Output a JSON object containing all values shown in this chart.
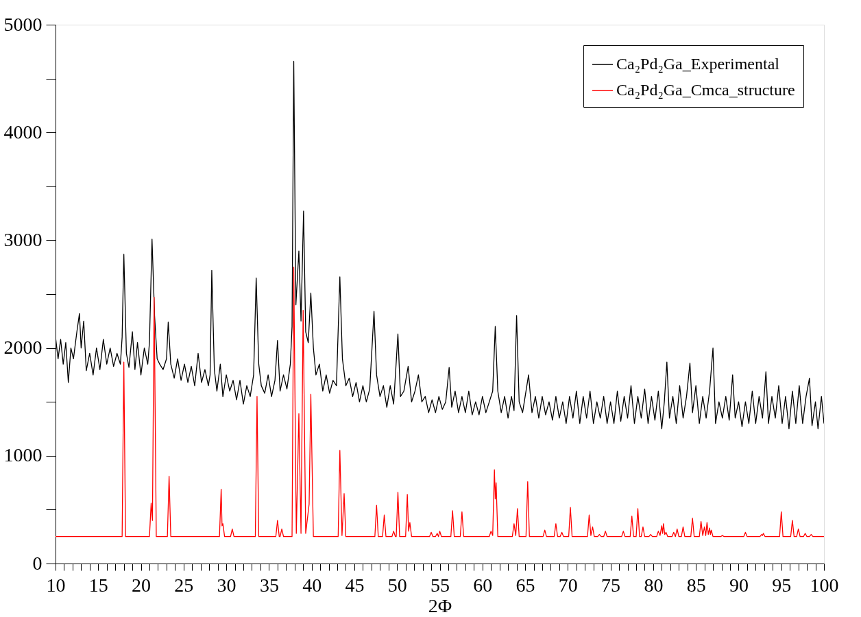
{
  "chart_data": {
    "type": "line",
    "xlabel": "2Φ",
    "xlim": [
      10,
      100
    ],
    "ylim": [
      0,
      5000
    ],
    "xticks": [
      10,
      {
        "value": 11,
        "label": null
      },
      {
        "value": 12,
        "label": null
      },
      {
        "value": 13,
        "label": null
      },
      {
        "value": 14,
        "label": null
      },
      15,
      {
        "value": 16,
        "label": null
      },
      {
        "value": 17,
        "label": null
      },
      {
        "value": 18,
        "label": null
      },
      {
        "value": 19,
        "label": null
      },
      20,
      {
        "value": 21,
        "label": null
      },
      {
        "value": 22,
        "label": null
      },
      {
        "value": 23,
        "label": null
      },
      {
        "value": 24,
        "label": null
      },
      25,
      {
        "value": 26,
        "label": null
      },
      {
        "value": 27,
        "label": null
      },
      {
        "value": 28,
        "label": null
      },
      {
        "value": 29,
        "label": null
      },
      30,
      {
        "value": 31,
        "label": null
      },
      {
        "value": 32,
        "label": null
      },
      {
        "value": 33,
        "label": null
      },
      {
        "value": 34,
        "label": null
      },
      35,
      {
        "value": 36,
        "label": null
      },
      {
        "value": 37,
        "label": null
      },
      {
        "value": 38,
        "label": null
      },
      {
        "value": 39,
        "label": null
      },
      40,
      {
        "value": 41,
        "label": null
      },
      {
        "value": 42,
        "label": null
      },
      {
        "value": 43,
        "label": null
      },
      {
        "value": 44,
        "label": null
      },
      45,
      {
        "value": 46,
        "label": null
      },
      {
        "value": 47,
        "label": null
      },
      {
        "value": 48,
        "label": null
      },
      {
        "value": 49,
        "label": null
      },
      50,
      {
        "value": 51,
        "label": null
      },
      {
        "value": 52,
        "label": null
      },
      {
        "value": 53,
        "label": null
      },
      {
        "value": 54,
        "label": null
      },
      55,
      {
        "value": 56,
        "label": null
      },
      {
        "value": 57,
        "label": null
      },
      {
        "value": 58,
        "label": null
      },
      {
        "value": 59,
        "label": null
      },
      60,
      {
        "value": 61,
        "label": null
      },
      {
        "value": 62,
        "label": null
      },
      {
        "value": 63,
        "label": null
      },
      {
        "value": 64,
        "label": null
      },
      65,
      {
        "value": 66,
        "label": null
      },
      {
        "value": 67,
        "label": null
      },
      {
        "value": 68,
        "label": null
      },
      {
        "value": 69,
        "label": null
      },
      70,
      {
        "value": 71,
        "label": null
      },
      {
        "value": 72,
        "label": null
      },
      {
        "value": 73,
        "label": null
      },
      {
        "value": 74,
        "label": null
      },
      75,
      {
        "value": 76,
        "label": null
      },
      {
        "value": 77,
        "label": null
      },
      {
        "value": 78,
        "label": null
      },
      {
        "value": 79,
        "label": null
      },
      80,
      {
        "value": 81,
        "label": null
      },
      {
        "value": 82,
        "label": null
      },
      {
        "value": 83,
        "label": null
      },
      {
        "value": 84,
        "label": null
      },
      85,
      {
        "value": 86,
        "label": null
      },
      {
        "value": 87,
        "label": null
      },
      {
        "value": 88,
        "label": null
      },
      {
        "value": 89,
        "label": null
      },
      90,
      {
        "value": 91,
        "label": null
      },
      {
        "value": 92,
        "label": null
      },
      {
        "value": 93,
        "label": null
      },
      {
        "value": 94,
        "label": null
      },
      95,
      {
        "value": 96,
        "label": null
      },
      {
        "value": 97,
        "label": null
      },
      {
        "value": 98,
        "label": null
      },
      {
        "value": 99,
        "label": null
      },
      100
    ],
    "yticks": [
      0,
      {
        "value": 500,
        "label": null
      },
      1000,
      {
        "value": 1500,
        "label": null
      },
      2000,
      {
        "value": 2500,
        "label": null
      },
      3000,
      {
        "value": 3500,
        "label": null
      },
      4000,
      {
        "value": 4500,
        "label": null
      },
      5000
    ],
    "grid": false,
    "legend": "top right",
    "marker": "none",
    "line_style": "solid",
    "series": [
      {
        "name": "Ca₂Pd₂Ga_Experimental",
        "color": "#000000",
        "x": [
          10,
          10.3,
          10.6,
          10.9,
          11.2,
          11.5,
          11.8,
          12.1,
          12.5,
          12.8,
          13.0,
          13.3,
          13.6,
          14.0,
          14.4,
          14.8,
          15.2,
          15.6,
          16.0,
          16.4,
          16.8,
          17.2,
          17.6,
          17.8,
          18.0,
          18.3,
          18.6,
          19.0,
          19.3,
          19.6,
          20.0,
          20.4,
          20.8,
          21.0,
          21.3,
          21.6,
          21.9,
          22.2,
          22.6,
          23.0,
          23.2,
          23.5,
          23.9,
          24.3,
          24.7,
          25.1,
          25.5,
          25.9,
          26.3,
          26.7,
          27.1,
          27.5,
          27.9,
          28.1,
          28.3,
          28.6,
          28.9,
          29.3,
          29.6,
          30.0,
          30.4,
          30.8,
          31.2,
          31.6,
          32.0,
          32.4,
          32.8,
          33.2,
          33.5,
          33.8,
          34.1,
          34.5,
          34.9,
          35.3,
          35.7,
          36.0,
          36.3,
          36.7,
          37.1,
          37.5,
          37.7,
          37.9,
          38.15,
          38.5,
          38.75,
          39.05,
          39.3,
          39.6,
          39.9,
          40.2,
          40.5,
          40.9,
          41.3,
          41.7,
          42.1,
          42.5,
          42.9,
          43.3,
          43.6,
          44.0,
          44.4,
          44.8,
          45.2,
          45.6,
          46.0,
          46.4,
          46.8,
          47.3,
          47.6,
          48.0,
          48.4,
          48.8,
          49.2,
          49.6,
          50.1,
          50.4,
          50.8,
          51.3,
          51.7,
          52.1,
          52.5,
          52.9,
          53.3,
          53.7,
          54.1,
          54.5,
          54.9,
          55.3,
          55.7,
          56.1,
          56.4,
          56.8,
          57.2,
          57.6,
          58.0,
          58.4,
          58.8,
          59.2,
          59.6,
          60.0,
          60.4,
          60.8,
          61.2,
          61.5,
          61.8,
          62.2,
          62.6,
          63.0,
          63.4,
          63.7,
          64.0,
          64.3,
          64.7,
          65.0,
          65.4,
          65.8,
          66.2,
          66.6,
          67.0,
          67.4,
          67.8,
          68.2,
          68.6,
          69.0,
          69.4,
          69.8,
          70.2,
          70.6,
          71.0,
          71.4,
          71.8,
          72.2,
          72.6,
          73.0,
          73.4,
          73.8,
          74.2,
          74.6,
          75.0,
          75.4,
          75.8,
          76.2,
          76.6,
          77.0,
          77.4,
          77.8,
          78.2,
          78.6,
          79.0,
          79.4,
          79.8,
          80.2,
          80.6,
          81.0,
          81.3,
          81.6,
          81.9,
          82.3,
          82.7,
          83.1,
          83.5,
          83.9,
          84.3,
          84.6,
          85.0,
          85.4,
          85.8,
          86.2,
          86.6,
          87.0,
          87.3,
          87.7,
          88.1,
          88.5,
          88.9,
          89.3,
          89.6,
          90.0,
          90.4,
          90.8,
          91.2,
          91.6,
          92.0,
          92.4,
          92.8,
          93.2,
          93.5,
          93.9,
          94.3,
          94.7,
          95.1,
          95.5,
          95.9,
          96.3,
          96.7,
          97.1,
          97.5,
          97.9,
          98.3,
          98.6,
          99.0,
          99.3,
          99.7,
          100
        ],
        "values": [
          2100,
          1900,
          2080,
          1850,
          2050,
          1680,
          2000,
          1900,
          2150,
          2320,
          2000,
          2250,
          1790,
          1950,
          1750,
          2000,
          1800,
          2080,
          1850,
          2000,
          1830,
          1950,
          1850,
          2100,
          2870,
          1950,
          1820,
          2150,
          1800,
          2050,
          1750,
          2000,
          1850,
          2050,
          3010,
          2300,
          1900,
          1850,
          1800,
          1900,
          2240,
          1850,
          1720,
          1900,
          1700,
          1850,
          1680,
          1830,
          1650,
          1950,
          1680,
          1800,
          1650,
          1750,
          2720,
          1800,
          1600,
          1850,
          1550,
          1750,
          1600,
          1700,
          1520,
          1700,
          1480,
          1650,
          1550,
          1750,
          2650,
          1850,
          1650,
          1580,
          1750,
          1550,
          1700,
          2070,
          1600,
          1750,
          1620,
          1850,
          2200,
          4660,
          2400,
          2900,
          2250,
          3270,
          2150,
          2050,
          2510,
          2000,
          1750,
          1850,
          1600,
          1750,
          1580,
          1700,
          1650,
          2660,
          1900,
          1650,
          1720,
          1550,
          1680,
          1500,
          1650,
          1500,
          1620,
          2340,
          1750,
          1550,
          1650,
          1450,
          1650,
          1480,
          2130,
          1550,
          1600,
          1830,
          1500,
          1600,
          1750,
          1500,
          1550,
          1400,
          1520,
          1400,
          1550,
          1430,
          1500,
          1820,
          1450,
          1600,
          1400,
          1550,
          1400,
          1600,
          1380,
          1500,
          1380,
          1550,
          1400,
          1500,
          1600,
          2200,
          1600,
          1400,
          1550,
          1350,
          1550,
          1420,
          2300,
          1500,
          1400,
          1550,
          1750,
          1400,
          1550,
          1350,
          1550,
          1380,
          1500,
          1330,
          1550,
          1350,
          1500,
          1300,
          1550,
          1350,
          1600,
          1300,
          1550,
          1350,
          1600,
          1300,
          1500,
          1350,
          1550,
          1300,
          1500,
          1300,
          1600,
          1320,
          1550,
          1350,
          1650,
          1300,
          1550,
          1350,
          1620,
          1300,
          1550,
          1330,
          1600,
          1250,
          1500,
          1870,
          1350,
          1550,
          1300,
          1650,
          1350,
          1550,
          1860,
          1400,
          1650,
          1300,
          1550,
          1350,
          1600,
          2000,
          1300,
          1500,
          1350,
          1550,
          1330,
          1750,
          1350,
          1500,
          1270,
          1500,
          1300,
          1600,
          1300,
          1550,
          1350,
          1780,
          1300,
          1550,
          1350,
          1650,
          1300,
          1550,
          1250,
          1600,
          1300,
          1650,
          1300,
          1550,
          1720,
          1280,
          1500,
          1250,
          1550,
          1300
        ]
      },
      {
        "name": "Ca₂Pd₂Ga_Cmca_structure",
        "color": "#ff0000",
        "x": [
          10,
          17.8,
          18.0,
          18.2,
          21.0,
          21.2,
          21.35,
          21.55,
          21.8,
          23.1,
          23.3,
          23.5,
          29.2,
          29.4,
          29.5,
          29.6,
          29.8,
          30.5,
          30.7,
          30.9,
          33.4,
          33.6,
          33.8,
          35.8,
          36.0,
          36.2,
          36.3,
          36.5,
          36.7,
          37.7,
          37.9,
          38.2,
          38.5,
          38.75,
          39.0,
          39.3,
          39.7,
          39.9,
          40.2,
          43.1,
          43.3,
          43.55,
          43.8,
          44.0,
          47.4,
          47.6,
          47.8,
          48.3,
          48.5,
          48.7,
          49.4,
          49.6,
          49.8,
          49.9,
          50.1,
          50.3,
          51.0,
          51.2,
          51.35,
          51.5,
          51.7,
          53.8,
          54.0,
          54.2,
          54.5,
          54.7,
          54.85,
          55.0,
          55.2,
          56.3,
          56.5,
          56.7,
          57.4,
          57.6,
          57.8,
          60.8,
          61.0,
          61.2,
          61.4,
          61.5,
          61.6,
          61.8,
          63.5,
          63.7,
          63.9,
          64.1,
          64.3,
          65.1,
          65.3,
          65.5,
          67.1,
          67.3,
          67.5,
          68.4,
          68.6,
          68.8,
          69.1,
          69.3,
          69.5,
          70.1,
          70.3,
          70.5,
          72.3,
          72.5,
          72.7,
          72.9,
          73.1,
          73.5,
          73.7,
          73.9,
          74.2,
          74.4,
          74.6,
          76.3,
          76.5,
          76.7,
          77.3,
          77.5,
          77.7,
          78.0,
          78.2,
          78.4,
          78.6,
          78.8,
          79.0,
          79.5,
          79.7,
          79.9,
          80.4,
          80.6,
          80.8,
          81.0,
          81.1,
          81.2,
          81.35,
          81.5,
          81.7,
          82.2,
          82.4,
          82.6,
          82.8,
          83.0,
          83.3,
          83.5,
          83.7,
          84.4,
          84.6,
          84.8,
          85.4,
          85.6,
          85.8,
          86.0,
          86.15,
          86.3,
          86.45,
          86.6,
          86.7,
          86.8,
          87.0,
          87.9,
          88.1,
          88.3,
          90.6,
          90.8,
          91.0,
          92.5,
          92.7,
          92.8,
          92.9,
          93.1,
          94.8,
          95.0,
          95.2,
          96.1,
          96.3,
          96.5,
          96.8,
          97.0,
          97.2,
          97.6,
          97.8,
          98.0,
          98.3,
          98.5,
          98.7,
          100
        ],
        "values": [
          250,
          250,
          1870,
          250,
          250,
          560,
          400,
          2470,
          250,
          250,
          810,
          250,
          250,
          690,
          350,
          370,
          250,
          250,
          320,
          250,
          250,
          1550,
          250,
          250,
          400,
          250,
          250,
          320,
          250,
          250,
          2750,
          280,
          1390,
          280,
          2350,
          280,
          550,
          1570,
          250,
          250,
          1050,
          260,
          650,
          250,
          250,
          540,
          250,
          250,
          450,
          250,
          250,
          300,
          250,
          250,
          660,
          250,
          250,
          640,
          300,
          380,
          250,
          250,
          290,
          250,
          250,
          280,
          250,
          300,
          250,
          250,
          490,
          250,
          250,
          480,
          250,
          250,
          300,
          260,
          870,
          600,
          750,
          250,
          250,
          370,
          260,
          510,
          250,
          250,
          760,
          250,
          250,
          310,
          250,
          250,
          370,
          250,
          250,
          290,
          250,
          250,
          520,
          250,
          250,
          450,
          260,
          340,
          250,
          250,
          270,
          250,
          250,
          300,
          250,
          250,
          300,
          250,
          250,
          440,
          250,
          250,
          510,
          250,
          250,
          340,
          250,
          250,
          270,
          250,
          250,
          300,
          260,
          350,
          280,
          370,
          270,
          290,
          250,
          250,
          290,
          250,
          320,
          250,
          250,
          340,
          250,
          250,
          420,
          250,
          250,
          390,
          260,
          340,
          260,
          380,
          270,
          330,
          270,
          310,
          250,
          250,
          260,
          250,
          250,
          290,
          250,
          250,
          270,
          260,
          280,
          250,
          250,
          480,
          250,
          250,
          400,
          250,
          250,
          320,
          250,
          250,
          280,
          250,
          250,
          270,
          250,
          250
        ]
      }
    ]
  }
}
